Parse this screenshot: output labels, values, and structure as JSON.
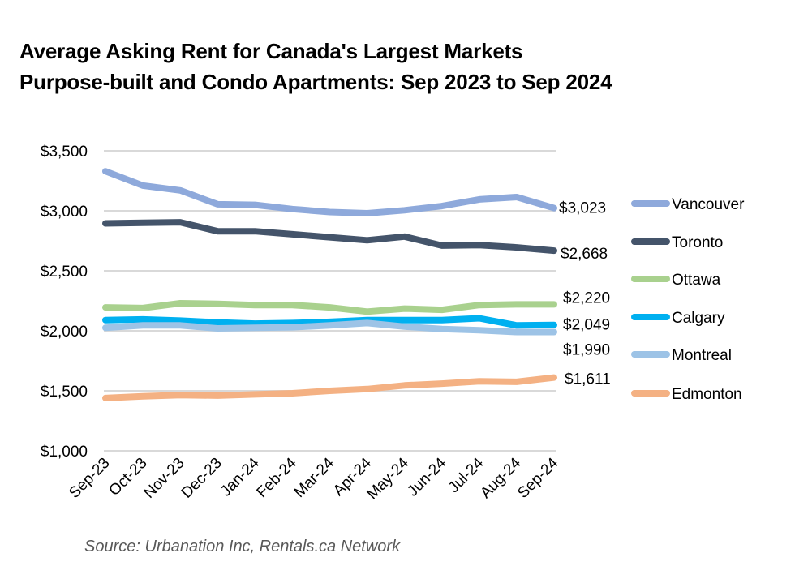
{
  "chart_data": {
    "type": "line",
    "title": "Average Asking Rent for Canada's Largest Markets",
    "subtitle": "Purpose-built and Condo Apartments: Sep 2023 to Sep 2024",
    "xlabel": "",
    "ylabel": "",
    "ylim": [
      1000,
      3500
    ],
    "yticks": [
      1000,
      1500,
      2000,
      2500,
      3000,
      3500
    ],
    "ytick_labels": [
      "$1,000",
      "$1,500",
      "$2,000",
      "$2,500",
      "$3,000",
      "$3,500"
    ],
    "grid": true,
    "legend_position": "right",
    "categories": [
      "Sep-23",
      "Oct-23",
      "Nov-23",
      "Dec-23",
      "Jan-24",
      "Feb-24",
      "Mar-24",
      "Apr-24",
      "May-24",
      "Jun-24",
      "Jul-24",
      "Aug-24",
      "Sep-24"
    ],
    "series": [
      {
        "name": "Vancouver",
        "color": "#8EA9DB",
        "values": [
          3330,
          3210,
          3170,
          3055,
          3050,
          3015,
          2990,
          2980,
          3005,
          3040,
          3095,
          3115,
          3023
        ],
        "end_label": "$3,023"
      },
      {
        "name": "Toronto",
        "color": "#44546A",
        "values": [
          2895,
          2900,
          2905,
          2830,
          2830,
          2805,
          2780,
          2755,
          2785,
          2710,
          2715,
          2695,
          2668
        ],
        "end_label": "$2,668"
      },
      {
        "name": "Ottawa",
        "color": "#A9D18E",
        "values": [
          2195,
          2190,
          2230,
          2225,
          2215,
          2215,
          2195,
          2160,
          2185,
          2175,
          2215,
          2220,
          2220
        ],
        "end_label": "$2,220"
      },
      {
        "name": "Calgary",
        "color": "#00B0F0",
        "values": [
          2090,
          2095,
          2085,
          2070,
          2060,
          2065,
          2075,
          2090,
          2090,
          2090,
          2105,
          2045,
          2049
        ],
        "end_label": "$2,049"
      },
      {
        "name": "Montreal",
        "color": "#9DC3E6",
        "values": [
          2025,
          2045,
          2045,
          2020,
          2025,
          2030,
          2045,
          2065,
          2035,
          2015,
          2005,
          1990,
          1990
        ],
        "end_label": "$1,990"
      },
      {
        "name": "Edmonton",
        "color": "#F4B183",
        "values": [
          1440,
          1455,
          1465,
          1460,
          1470,
          1480,
          1500,
          1515,
          1545,
          1560,
          1580,
          1575,
          1611
        ],
        "end_label": "$1,611"
      }
    ],
    "source": "Source: Urbanation Inc, Rentals.ca Network"
  }
}
